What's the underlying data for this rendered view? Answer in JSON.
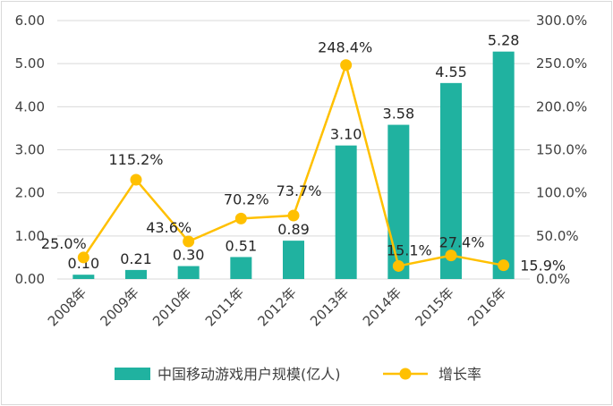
{
  "chart_data": {
    "type": "bar+line",
    "categories": [
      "2008年",
      "2009年",
      "2010年",
      "2011年",
      "2012年",
      "2013年",
      "2014年",
      "2015年",
      "2016年"
    ],
    "series": [
      {
        "name": "中国移动游戏用户规模(亿人)",
        "type": "bar",
        "axis": "left",
        "values": [
          0.1,
          0.21,
          0.3,
          0.51,
          0.89,
          3.1,
          3.58,
          4.55,
          5.28
        ],
        "labels": [
          "0.10",
          "0.21",
          "0.30",
          "0.51",
          "0.89",
          "3.10",
          "3.58",
          "4.55",
          "5.28"
        ],
        "color": "#20b2a0"
      },
      {
        "name": "增长率",
        "type": "line",
        "axis": "right",
        "values": [
          25.0,
          115.2,
          43.6,
          70.2,
          73.7,
          248.4,
          15.1,
          27.4,
          15.9
        ],
        "labels": [
          "25.0%",
          "115.2%",
          "43.6%",
          "70.2%",
          "73.7%",
          "248.4%",
          "15.1%",
          "27.4%",
          "15.9%"
        ],
        "color": "#ffc000"
      }
    ],
    "y_left": {
      "lim": [
        0,
        6
      ],
      "ticks": [
        "0.00",
        "1.00",
        "2.00",
        "3.00",
        "4.00",
        "5.00",
        "6.00"
      ]
    },
    "y_right": {
      "lim": [
        0,
        300
      ],
      "ticks": [
        "0.0%",
        "50.0%",
        "100.0%",
        "150.0%",
        "200.0%",
        "250.0%",
        "300.0%"
      ]
    },
    "grid": true,
    "legend_position": "bottom"
  }
}
